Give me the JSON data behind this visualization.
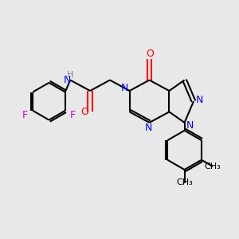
{
  "background_color": "#e8e8e8",
  "bond_color": "#000000",
  "nitrogen_color": "#0000ff",
  "oxygen_color": "#ff0000",
  "fluorine_color": "#cc00cc",
  "hydrogen_color": "#808080",
  "figsize": [
    3.0,
    3.0
  ],
  "dpi": 100,
  "xlim": [
    0,
    10
  ],
  "ylim": [
    0,
    10
  ]
}
